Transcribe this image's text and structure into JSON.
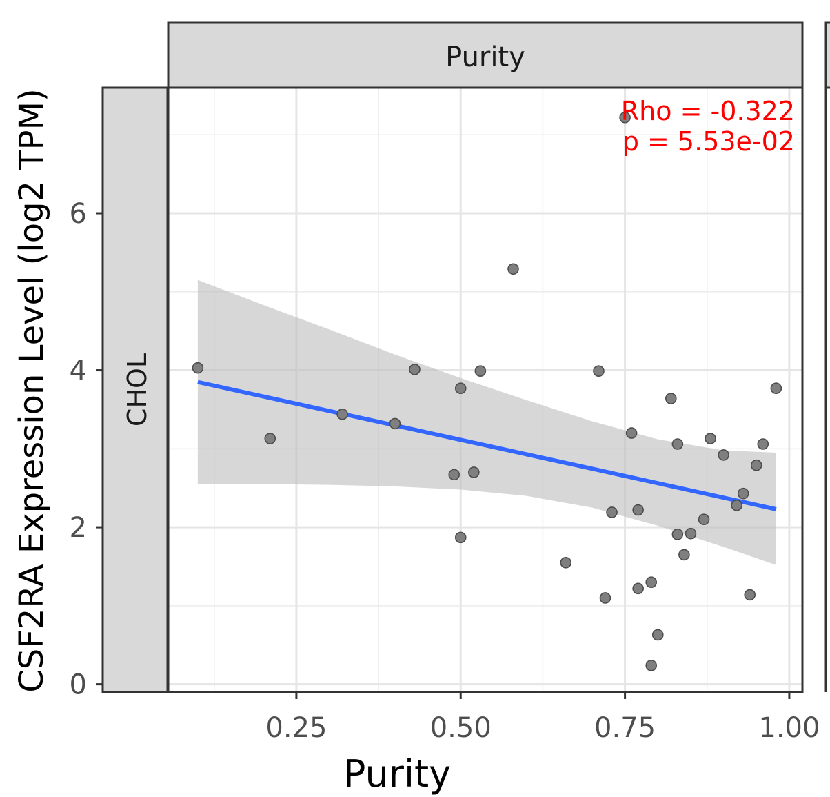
{
  "chart_data": {
    "type": "scatter",
    "facet_top_label": "Purity",
    "facet_side_label": "CHOL",
    "xlabel": "Purity",
    "ylabel": "CSF2RA Expression Level (log2 TPM)",
    "xlim": [
      0.055,
      1.02
    ],
    "ylim": [
      -0.1,
      7.6
    ],
    "x_ticks": [
      0.25,
      0.5,
      0.75,
      1.0
    ],
    "x_tick_labels": [
      "0.25",
      "0.50",
      "0.75",
      "1.00"
    ],
    "y_ticks": [
      0,
      2,
      4,
      6
    ],
    "y_tick_labels": [
      "0",
      "2",
      "4",
      "6"
    ],
    "grid": true,
    "annotation": {
      "rho_text": "Rho = -0.322",
      "p_text": "p = 5.53e-02",
      "color": "#ff0000"
    },
    "point_color": "#7f7f7f",
    "line_color": "#3366ff",
    "ribbon_color": "#bdbdbd",
    "points": [
      {
        "x": 0.1,
        "y": 4.03
      },
      {
        "x": 0.21,
        "y": 3.13
      },
      {
        "x": 0.32,
        "y": 3.44
      },
      {
        "x": 0.4,
        "y": 3.32
      },
      {
        "x": 0.43,
        "y": 4.01
      },
      {
        "x": 0.49,
        "y": 2.67
      },
      {
        "x": 0.5,
        "y": 3.77
      },
      {
        "x": 0.5,
        "y": 1.87
      },
      {
        "x": 0.52,
        "y": 2.7
      },
      {
        "x": 0.53,
        "y": 3.99
      },
      {
        "x": 0.58,
        "y": 5.29
      },
      {
        "x": 0.66,
        "y": 1.55
      },
      {
        "x": 0.71,
        "y": 3.99
      },
      {
        "x": 0.72,
        "y": 1.1
      },
      {
        "x": 0.73,
        "y": 2.19
      },
      {
        "x": 0.75,
        "y": 7.22
      },
      {
        "x": 0.76,
        "y": 3.2
      },
      {
        "x": 0.77,
        "y": 2.22
      },
      {
        "x": 0.77,
        "y": 1.22
      },
      {
        "x": 0.79,
        "y": 1.3
      },
      {
        "x": 0.79,
        "y": 0.24
      },
      {
        "x": 0.8,
        "y": 0.63
      },
      {
        "x": 0.82,
        "y": 3.64
      },
      {
        "x": 0.83,
        "y": 3.06
      },
      {
        "x": 0.83,
        "y": 1.91
      },
      {
        "x": 0.84,
        "y": 1.65
      },
      {
        "x": 0.85,
        "y": 1.92
      },
      {
        "x": 0.87,
        "y": 2.1
      },
      {
        "x": 0.88,
        "y": 3.13
      },
      {
        "x": 0.9,
        "y": 2.92
      },
      {
        "x": 0.92,
        "y": 2.28
      },
      {
        "x": 0.93,
        "y": 2.43
      },
      {
        "x": 0.94,
        "y": 1.14
      },
      {
        "x": 0.95,
        "y": 2.79
      },
      {
        "x": 0.96,
        "y": 3.06
      },
      {
        "x": 0.98,
        "y": 3.77
      }
    ],
    "fit_line": {
      "x": [
        0.1,
        0.98
      ],
      "y": [
        3.85,
        2.23
      ]
    },
    "ribbon": {
      "x": [
        0.1,
        0.2,
        0.3,
        0.4,
        0.5,
        0.6,
        0.7,
        0.8,
        0.9,
        0.98
      ],
      "upper": [
        5.15,
        4.83,
        4.52,
        4.2,
        3.9,
        3.62,
        3.35,
        3.12,
        2.98,
        2.95
      ],
      "lower": [
        2.55,
        2.55,
        2.54,
        2.52,
        2.48,
        2.4,
        2.25,
        2.02,
        1.75,
        1.52
      ]
    }
  }
}
